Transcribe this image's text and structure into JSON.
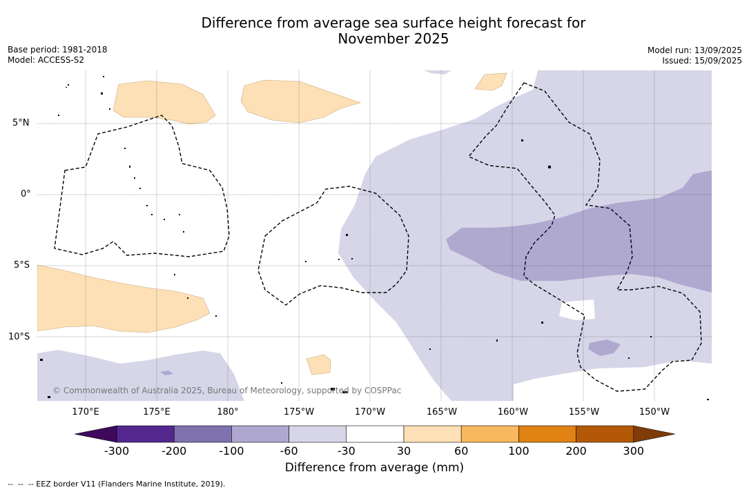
{
  "header": {
    "title_line1": "Difference from average sea surface height forecast for",
    "title_line2": "November 2025",
    "base_period": "Base period: 1981-2018",
    "model": "Model: ACCESS-S2",
    "model_run": "Model run: 13/09/2025",
    "issued": "Issued: 15/09/2025"
  },
  "map": {
    "lat_labels": [
      "5°N",
      "0°",
      "5°S",
      "10°S"
    ],
    "lon_labels": [
      "170°E",
      "175°E",
      "180°",
      "175°W",
      "170°W",
      "165°W",
      "160°W",
      "155°W",
      "150°W"
    ],
    "copyright": "© Commonwealth of Australia 2025, Bureau of Meteorology, supported by COSPPac"
  },
  "legend": {
    "ticks": [
      "-300",
      "-200",
      "-100",
      "-60",
      "-30",
      "30",
      "60",
      "100",
      "200",
      "300"
    ],
    "colors": [
      "#3f0a5e",
      "#54278f",
      "#7f70ae",
      "#aea8d0",
      "#d6d6e8",
      "#ffffff",
      "#fde0b5",
      "#f8b85d",
      "#e08214",
      "#b35806",
      "#7f3b08"
    ],
    "label": "Difference from average (mm)"
  },
  "footnote": "--  --  -- EEZ border V11 (Flanders Marine Institute, 2019)."
}
